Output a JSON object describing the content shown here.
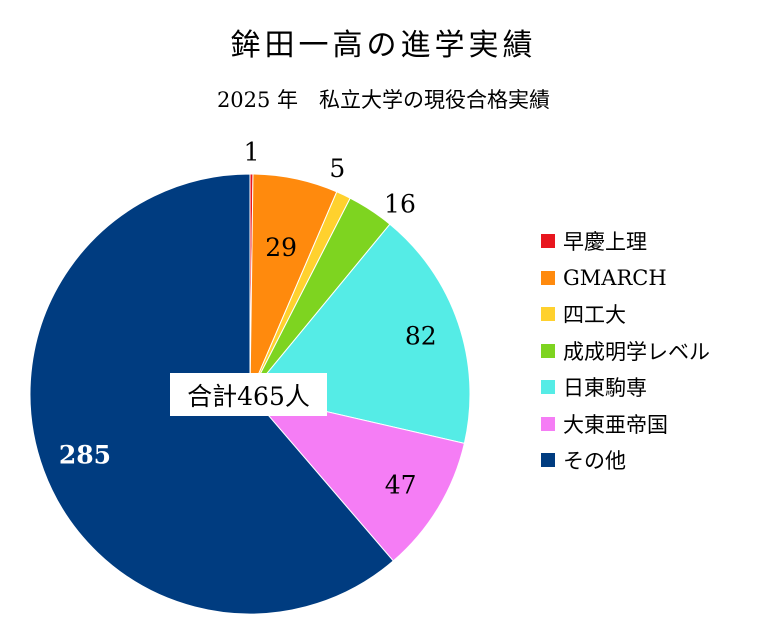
{
  "chart_data": {
    "type": "pie",
    "title": "鉾田一高の進学実績",
    "subtitle": "2025 年　私立大学の現役合格実績",
    "total_label": "合計465人",
    "categories": [
      "早慶上理",
      "GMARCH",
      "四工大",
      "成成明学レベル",
      "日東駒専",
      "大東亜帝国",
      "その他"
    ],
    "values": [
      1,
      29,
      5,
      16,
      82,
      47,
      285
    ],
    "colors": [
      "#e8161e",
      "#ff8a0d",
      "#ffd12e",
      "#7ed420",
      "#55ece6",
      "#f57df5",
      "#003c80"
    ],
    "label_colors": [
      "#000000",
      "#000000",
      "#000000",
      "#000000",
      "#000000",
      "#000000",
      "#ffffff"
    ],
    "legend_position": "right"
  }
}
